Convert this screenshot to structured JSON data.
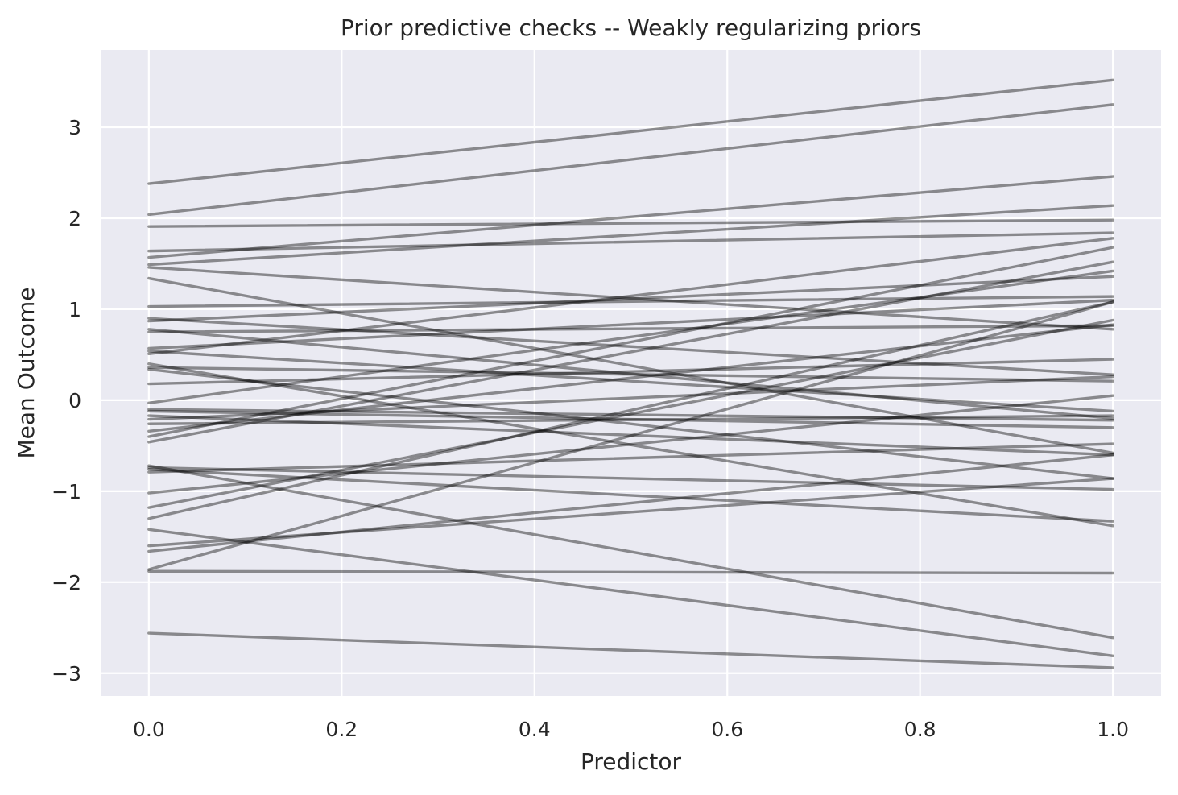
{
  "chart_data": {
    "type": "line",
    "title": "Prior predictive checks -- Weakly regularizing priors",
    "xlabel": "Predictor",
    "ylabel": "Mean Outcome",
    "xlim": [
      -0.05,
      1.05
    ],
    "ylim": [
      -3.25,
      3.85
    ],
    "x_ticks": [
      0.0,
      0.2,
      0.4,
      0.6,
      0.8,
      1.0
    ],
    "x_tick_labels": [
      "0.0",
      "0.2",
      "0.4",
      "0.6",
      "0.8",
      "1.0"
    ],
    "y_ticks": [
      3,
      2,
      1,
      0,
      -1,
      -2,
      -3
    ],
    "y_tick_labels": [
      "3",
      "2",
      "1",
      "0",
      "−1",
      "−2",
      "−3"
    ],
    "grid": true,
    "background_color": "#eaeaf2",
    "grid_color": "#ffffff",
    "line_color": "#000000",
    "line_alpha": 0.42,
    "x": [
      0,
      1
    ],
    "series": [
      {
        "values": [
          2.38,
          3.52
        ]
      },
      {
        "values": [
          2.04,
          3.25
        ]
      },
      {
        "values": [
          1.91,
          1.98
        ]
      },
      {
        "values": [
          1.64,
          1.84
        ]
      },
      {
        "values": [
          1.57,
          2.46
        ]
      },
      {
        "values": [
          1.49,
          2.14
        ]
      },
      {
        "values": [
          1.46,
          0.78
        ]
      },
      {
        "values": [
          1.34,
          -0.58
        ]
      },
      {
        "values": [
          1.03,
          1.14
        ]
      },
      {
        "values": [
          0.9,
          0.28
        ]
      },
      {
        "values": [
          0.87,
          1.36
        ]
      },
      {
        "values": [
          0.78,
          -0.2
        ]
      },
      {
        "values": [
          0.75,
          0.82
        ]
      },
      {
        "values": [
          0.57,
          1.1
        ]
      },
      {
        "values": [
          0.54,
          -0.12
        ]
      },
      {
        "values": [
          0.51,
          1.78
        ]
      },
      {
        "values": [
          0.4,
          -1.38
        ]
      },
      {
        "values": [
          0.36,
          0.21
        ]
      },
      {
        "values": [
          0.34,
          -0.86
        ]
      },
      {
        "values": [
          0.18,
          0.45
        ]
      },
      {
        "values": [
          -0.03,
          1.42
        ]
      },
      {
        "values": [
          -0.1,
          -0.22
        ]
      },
      {
        "values": [
          -0.12,
          -0.3
        ]
      },
      {
        "values": [
          -0.17,
          -0.6
        ]
      },
      {
        "values": [
          -0.21,
          0.26
        ]
      },
      {
        "values": [
          -0.26,
          -0.17
        ]
      },
      {
        "values": [
          -0.34,
          0.83
        ]
      },
      {
        "values": [
          -0.4,
          1.68
        ]
      },
      {
        "values": [
          -0.46,
          1.52
        ]
      },
      {
        "values": [
          -0.72,
          -2.61
        ]
      },
      {
        "values": [
          -0.74,
          -0.98
        ]
      },
      {
        "values": [
          -0.76,
          -1.33
        ]
      },
      {
        "values": [
          -0.79,
          -0.48
        ]
      },
      {
        "values": [
          -1.02,
          0.05
        ]
      },
      {
        "values": [
          -1.18,
          0.88
        ]
      },
      {
        "values": [
          -1.3,
          1.08
        ]
      },
      {
        "values": [
          -1.42,
          -2.81
        ]
      },
      {
        "values": [
          -1.6,
          -0.86
        ]
      },
      {
        "values": [
          -1.66,
          -0.6
        ]
      },
      {
        "values": [
          -1.86,
          1.08
        ]
      },
      {
        "values": [
          -1.88,
          -1.9
        ]
      },
      {
        "values": [
          -2.56,
          -2.94
        ]
      }
    ]
  }
}
